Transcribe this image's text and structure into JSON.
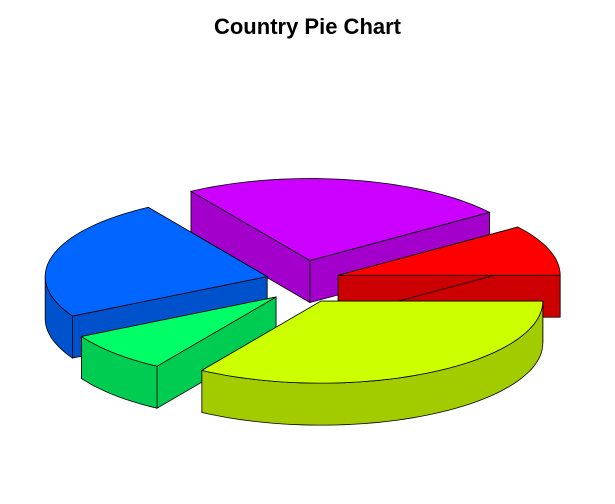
{
  "chart_data": {
    "type": "pie",
    "style": "3d-exploded",
    "title": "Country Pie Chart",
    "legend": false,
    "slices": [
      {
        "value": 10,
        "color": "#FF0000",
        "side_color": "#CC0000"
      },
      {
        "value": 24,
        "color": "#CC00FF",
        "side_color": "#A300CC"
      },
      {
        "value": 24,
        "color": "#0066FF",
        "side_color": "#0052CC"
      },
      {
        "value": 8,
        "color": "#00FF66",
        "side_color": "#00CC52"
      },
      {
        "value": 34,
        "color": "#CCFF00",
        "side_color": "#A3CC00"
      }
    ]
  }
}
